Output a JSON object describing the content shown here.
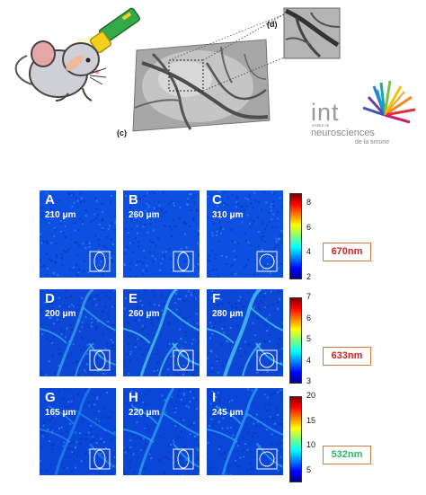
{
  "labels": {
    "c": "(c)",
    "d": "(d)"
  },
  "logo": {
    "int": "int",
    "institut": "institut de",
    "neuro": "neurosciences",
    "timone": "de la timone"
  },
  "panels": [
    {
      "letter": "A",
      "depth": "210 μm",
      "row": 0,
      "col": 0
    },
    {
      "letter": "B",
      "depth": "260 μm",
      "row": 0,
      "col": 1
    },
    {
      "letter": "C",
      "depth": "310 μm",
      "row": 0,
      "col": 2
    },
    {
      "letter": "D",
      "depth": "200 μm",
      "row": 1,
      "col": 0
    },
    {
      "letter": "E",
      "depth": "260 μm",
      "row": 1,
      "col": 1
    },
    {
      "letter": "F",
      "depth": "280 μm",
      "row": 1,
      "col": 2
    },
    {
      "letter": "G",
      "depth": "165 μm",
      "row": 2,
      "col": 0
    },
    {
      "letter": "H",
      "depth": "220 μm",
      "row": 2,
      "col": 1
    },
    {
      "letter": "I",
      "depth": "245 μm",
      "row": 2,
      "col": 2
    }
  ],
  "colorbars": [
    {
      "ticks": [
        "8",
        "6",
        "4",
        "2"
      ],
      "min": 2,
      "max": 8.8,
      "wavelength": "670nm",
      "wl_color": "#d42020"
    },
    {
      "ticks": [
        "7",
        "6",
        "5",
        "4",
        "3"
      ],
      "min": 3,
      "max": 7,
      "wavelength": "633nm",
      "wl_color": "#d42020"
    },
    {
      "ticks": [
        "20",
        "15",
        "10",
        "5"
      ],
      "min": 3,
      "max": 20,
      "wavelength": "532nm",
      "wl_color": "#2fb36a"
    }
  ]
}
